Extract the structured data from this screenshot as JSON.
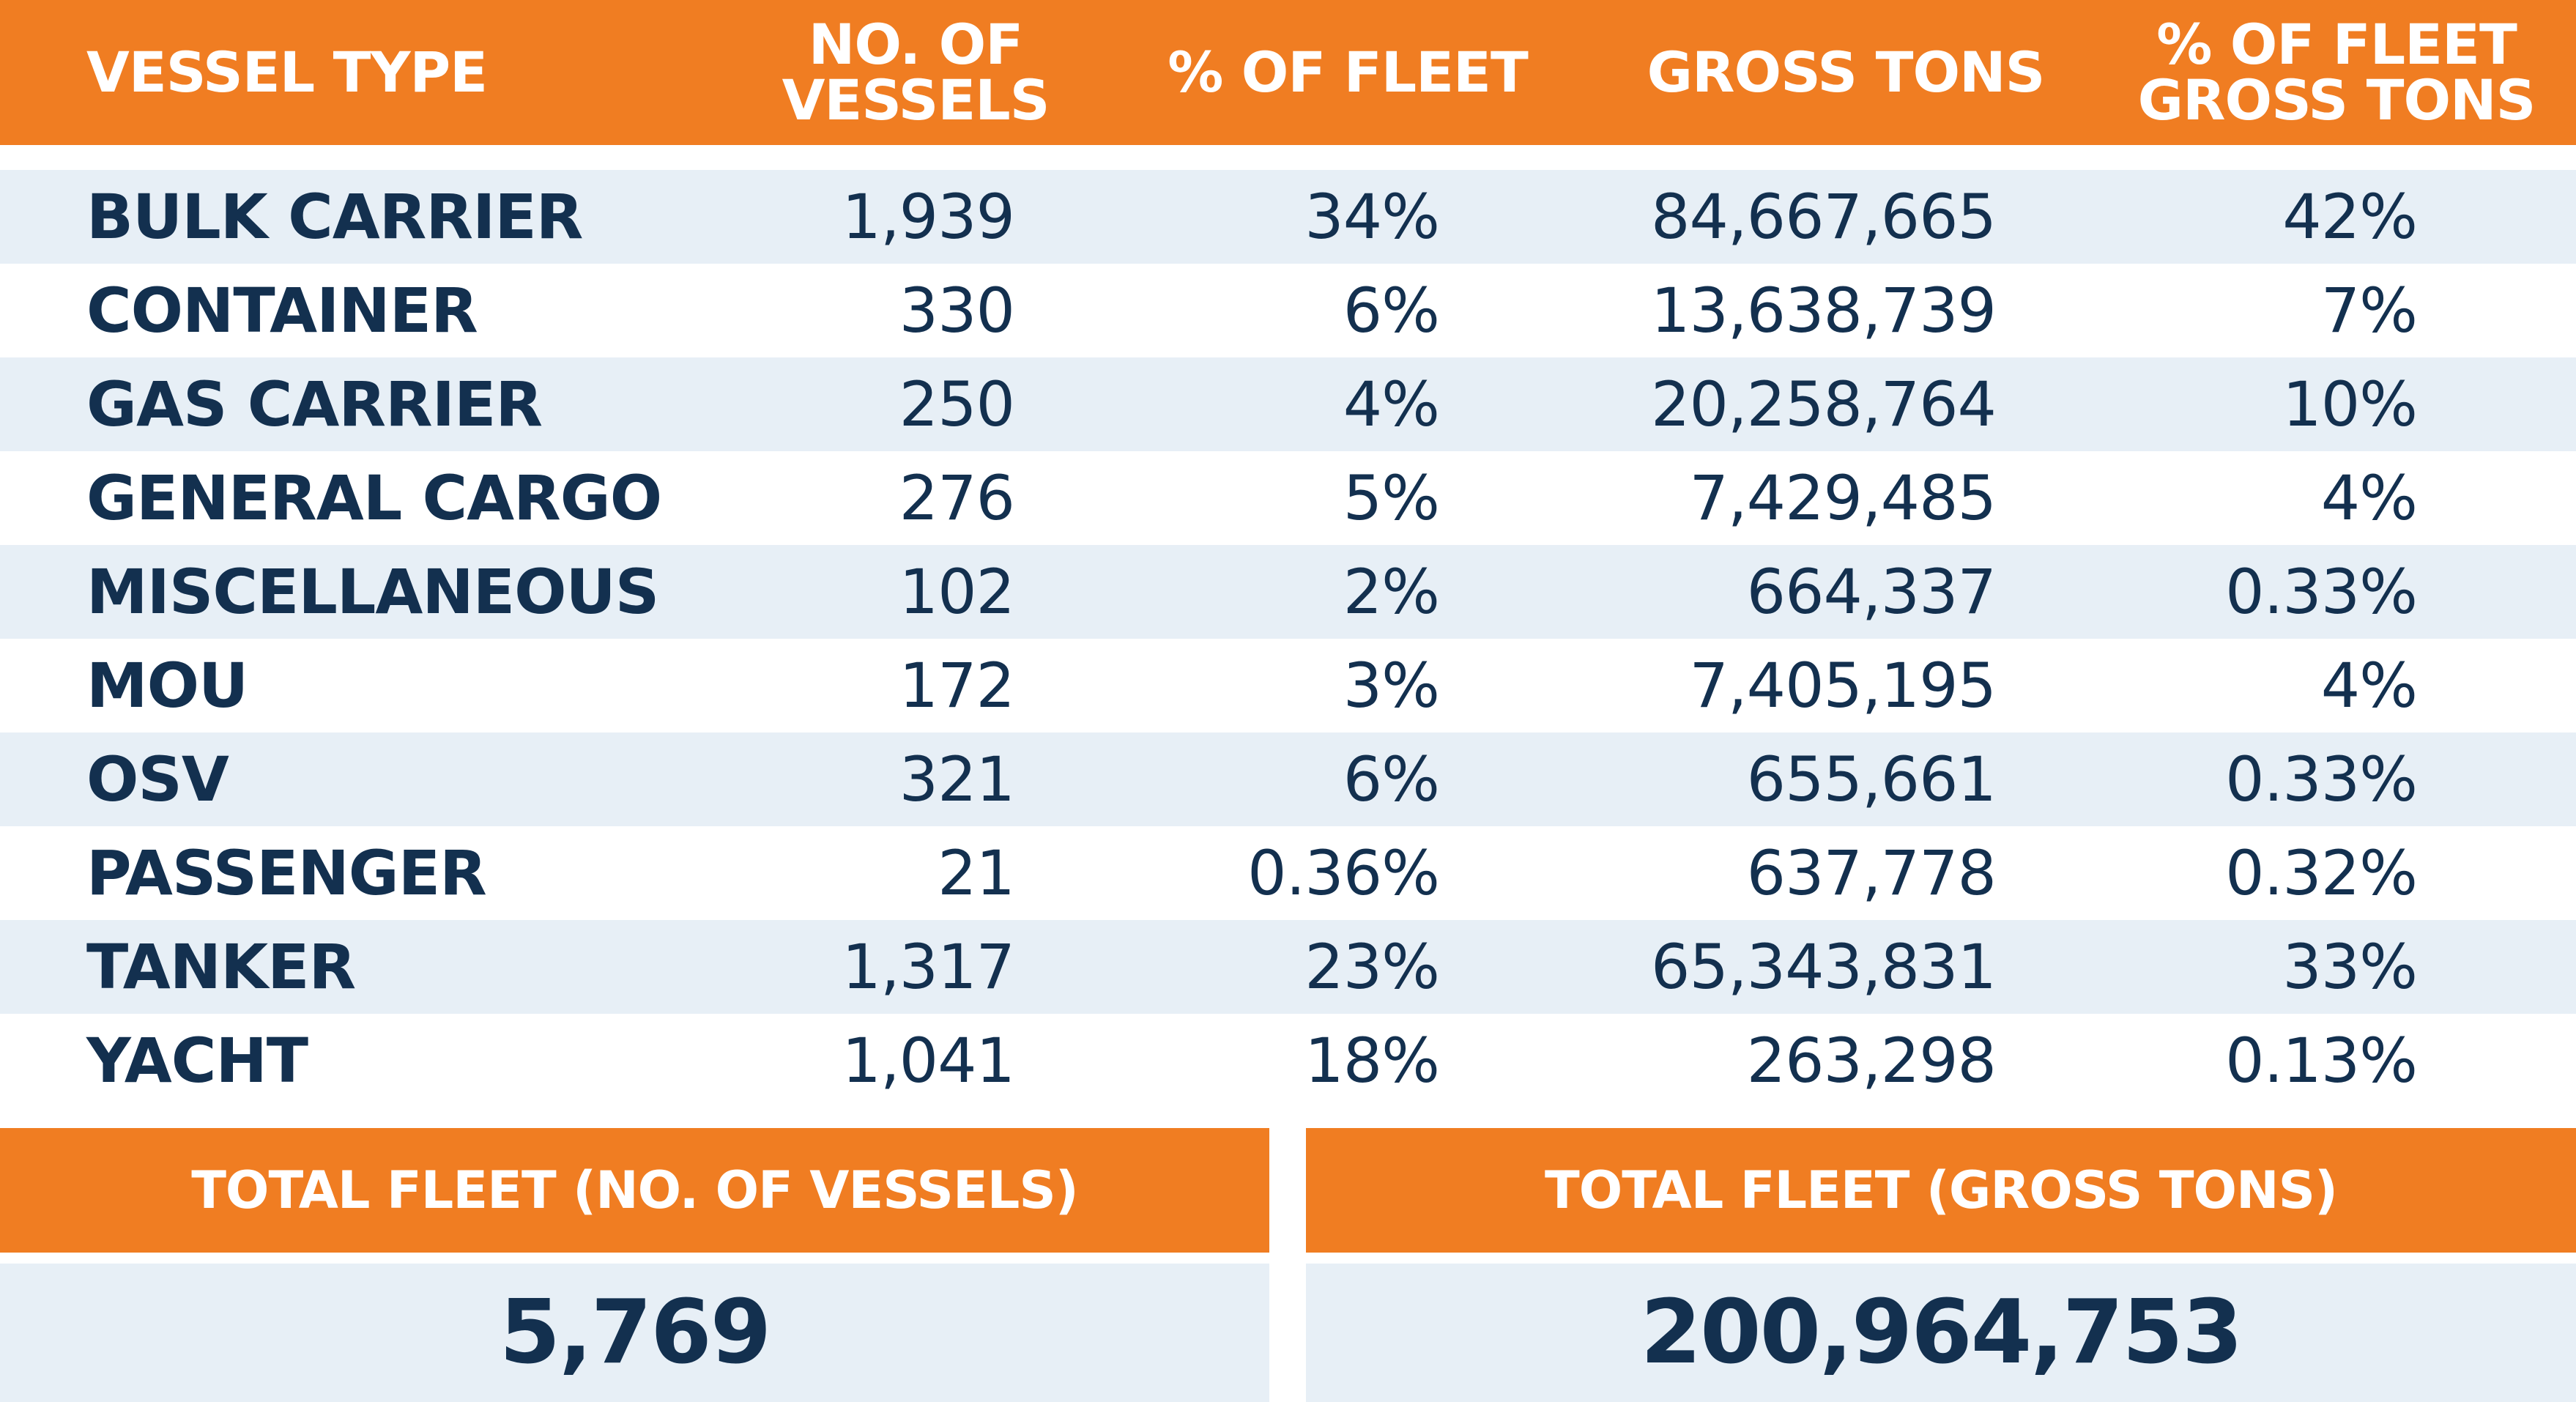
{
  "chart_data": {
    "type": "table",
    "columns": [
      "VESSEL TYPE",
      "NO. OF\nVESSELS",
      "% OF FLEET",
      "GROSS TONS",
      "% OF FLEET\nGROSS TONS"
    ],
    "rows": [
      [
        "BULK CARRIER",
        "1,939",
        "34%",
        "84,667,665",
        "42%"
      ],
      [
        "CONTAINER",
        "330",
        "6%",
        "13,638,739",
        "7%"
      ],
      [
        "GAS CARRIER",
        "250",
        "4%",
        "20,258,764",
        "10%"
      ],
      [
        "GENERAL CARGO",
        "276",
        "5%",
        "7,429,485",
        "4%"
      ],
      [
        "MISCELLANEOUS",
        "102",
        "2%",
        "664,337",
        "0.33%"
      ],
      [
        "MOU",
        "172",
        "3%",
        "7,405,195",
        "4%"
      ],
      [
        "OSV",
        "321",
        "6%",
        "655,661",
        "0.33%"
      ],
      [
        "PASSENGER",
        "21",
        "0.36%",
        "637,778",
        "0.32%"
      ],
      [
        "TANKER",
        "1,317",
        "23%",
        "65,343,831",
        "33%"
      ],
      [
        "YACHT",
        "1,041",
        "18%",
        "263,298",
        "0.13%"
      ]
    ],
    "totals": {
      "vessels_label": "TOTAL FLEET (NO. OF VESSELS)",
      "vessels_value": "5,769",
      "tons_label": "TOTAL FLEET (GROSS TONS)",
      "tons_value": "200,964,753"
    }
  },
  "colors": {
    "header_orange": "#f07d22",
    "row_stripe": "#e7eff6",
    "text_navy": "#13304f"
  }
}
